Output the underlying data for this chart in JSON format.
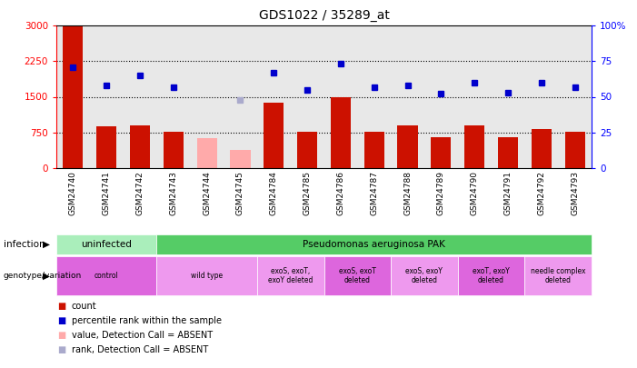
{
  "title": "GDS1022 / 35289_at",
  "samples": [
    "GSM24740",
    "GSM24741",
    "GSM24742",
    "GSM24743",
    "GSM24744",
    "GSM24745",
    "GSM24784",
    "GSM24785",
    "GSM24786",
    "GSM24787",
    "GSM24788",
    "GSM24789",
    "GSM24790",
    "GSM24791",
    "GSM24792",
    "GSM24793"
  ],
  "counts": [
    3000,
    870,
    900,
    760,
    640,
    380,
    1380,
    760,
    1490,
    770,
    900,
    650,
    900,
    650,
    820,
    770
  ],
  "count_absent": [
    false,
    false,
    false,
    false,
    true,
    true,
    false,
    false,
    false,
    false,
    false,
    false,
    false,
    false,
    false,
    false
  ],
  "percentile_ranks": [
    71,
    58,
    65,
    57,
    null,
    48,
    67,
    55,
    73,
    57,
    58,
    52,
    60,
    53,
    60,
    57
  ],
  "rank_absent": [
    false,
    false,
    false,
    false,
    false,
    true,
    false,
    false,
    false,
    false,
    false,
    false,
    false,
    false,
    false,
    false
  ],
  "ylim_left": [
    0,
    3000
  ],
  "ylim_right": [
    0,
    100
  ],
  "yticks_left": [
    0,
    750,
    1500,
    2250,
    3000
  ],
  "yticks_right": [
    0,
    25,
    50,
    75,
    100
  ],
  "infection_labels": [
    {
      "text": "uninfected",
      "start": 0,
      "end": 3,
      "color": "#aaeebb"
    },
    {
      "text": "Pseudomonas aeruginosa PAK",
      "start": 3,
      "end": 16,
      "color": "#55cc66"
    }
  ],
  "genotype_labels": [
    {
      "text": "control",
      "start": 0,
      "end": 3,
      "color": "#dd66dd"
    },
    {
      "text": "wild type",
      "start": 3,
      "end": 6,
      "color": "#ee99ee"
    },
    {
      "text": "exoS, exoT,\nexoY deleted",
      "start": 6,
      "end": 8,
      "color": "#ee99ee"
    },
    {
      "text": "exoS, exoT\ndeleted",
      "start": 8,
      "end": 10,
      "color": "#dd66dd"
    },
    {
      "text": "exoS, exoY\ndeleted",
      "start": 10,
      "end": 12,
      "color": "#ee99ee"
    },
    {
      "text": "exoT, exoY\ndeleted",
      "start": 12,
      "end": 14,
      "color": "#dd66dd"
    },
    {
      "text": "needle complex\ndeleted",
      "start": 14,
      "end": 16,
      "color": "#ee99ee"
    }
  ],
  "bar_color_normal": "#cc1100",
  "bar_color_absent": "#ffaaaa",
  "dot_color_normal": "#0000cc",
  "dot_color_absent": "#aaaacc",
  "bg_color": "#e8e8e8",
  "legend_items": [
    {
      "color": "#cc1100",
      "label": "count"
    },
    {
      "color": "#0000cc",
      "label": "percentile rank within the sample"
    },
    {
      "color": "#ffaaaa",
      "label": "value, Detection Call = ABSENT"
    },
    {
      "color": "#aaaacc",
      "label": "rank, Detection Call = ABSENT"
    }
  ]
}
